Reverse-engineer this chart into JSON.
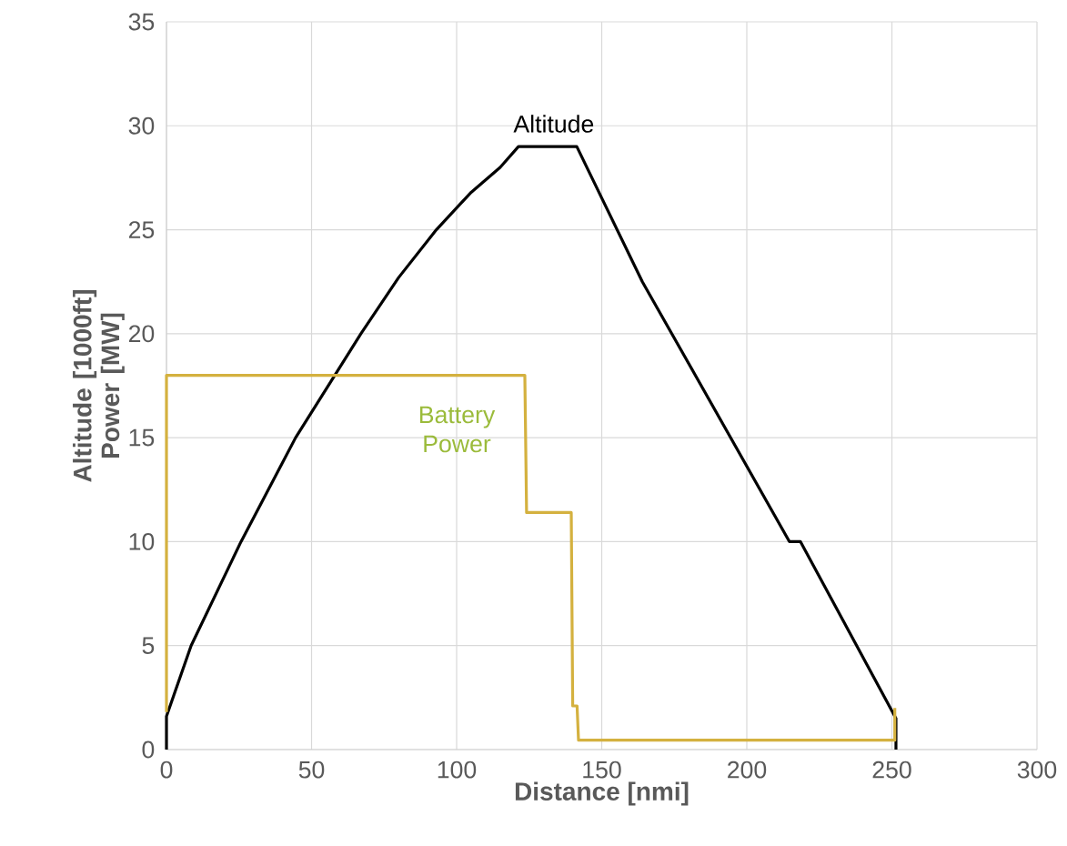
{
  "chart_data": {
    "type": "line",
    "xlabel": "Distance [nmi]",
    "ylabel": "Altitude [1000ft] Power [MW]",
    "xlim": [
      0,
      300
    ],
    "ylim": [
      0,
      35
    ],
    "xticks": [
      0,
      50,
      100,
      150,
      200,
      250,
      300
    ],
    "yticks": [
      0,
      5,
      10,
      15,
      20,
      25,
      30,
      35
    ],
    "grid": true,
    "marker": "none",
    "line_style": "solid",
    "series": [
      {
        "name": "Altitude",
        "color": "#000000",
        "x": [
          0,
          0,
          8.5,
          25.7,
          44.5,
          58,
          67,
          80,
          93,
          105,
          115,
          121.3,
          141.4,
          164,
          214.7,
          218.5,
          251.4,
          251.4
        ],
        "values": [
          0,
          1.6,
          5,
          10,
          15,
          18,
          20,
          22.7,
          25,
          26.8,
          28,
          29,
          29,
          22.5,
          10,
          10,
          1.5,
          0
        ]
      },
      {
        "name": "Battery Power",
        "color": "#d4b13f",
        "x": [
          0,
          0,
          123.5,
          124.1,
          139.5,
          140,
          141.5,
          142,
          251,
          251
        ],
        "values": [
          1.8,
          18,
          18,
          11.4,
          11.4,
          2.1,
          2.1,
          0.45,
          0.45,
          2
        ]
      }
    ]
  }
}
